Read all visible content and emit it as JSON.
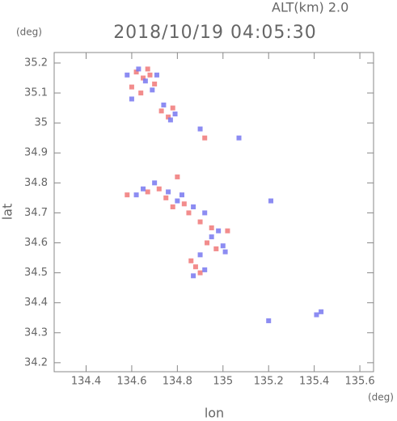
{
  "chart_data": {
    "type": "scatter",
    "title": "2018/10/19 04:05:30",
    "subtitle": "ALT(km) 2.0",
    "ylabel": "lat",
    "yunit": "(deg)",
    "xlabel": "lon",
    "xunit": "(deg)",
    "xlim": [
      134.26,
      135.66
    ],
    "ylim": [
      34.17,
      35.235
    ],
    "xticks": [
      134.4,
      134.6,
      134.8,
      135.0,
      135.2,
      135.4,
      135.6
    ],
    "yticks": [
      34.2,
      34.3,
      34.4,
      34.5,
      34.6,
      34.7,
      34.8,
      34.9,
      35.0,
      35.1,
      35.2
    ],
    "series": [
      {
        "color": "#f07878",
        "x": [
          134.62,
          134.65,
          134.67,
          134.6,
          134.7,
          134.64,
          134.68,
          134.73,
          134.76,
          134.78,
          134.92,
          134.58,
          134.67,
          134.8,
          134.75,
          134.83,
          134.85,
          134.78,
          134.9,
          134.95,
          135.02,
          134.93,
          134.97,
          134.88,
          134.9,
          134.86,
          134.72
        ],
        "y": [
          35.17,
          35.15,
          35.18,
          35.12,
          35.13,
          35.1,
          35.16,
          35.04,
          35.02,
          35.05,
          34.95,
          34.76,
          34.77,
          34.82,
          34.75,
          34.73,
          34.7,
          34.72,
          34.67,
          34.65,
          34.64,
          34.6,
          34.58,
          34.52,
          34.5,
          34.54,
          34.78
        ]
      },
      {
        "color": "#7878f0",
        "x": [
          134.58,
          134.63,
          134.66,
          134.71,
          134.6,
          134.69,
          134.74,
          134.77,
          134.79,
          135.07,
          134.65,
          134.62,
          134.76,
          134.8,
          134.82,
          134.87,
          134.92,
          134.98,
          135.0,
          134.95,
          134.9,
          134.87,
          134.92,
          135.01,
          135.2,
          135.21,
          135.41,
          135.43,
          134.9,
          134.7
        ],
        "y": [
          35.16,
          35.18,
          35.14,
          35.16,
          35.08,
          35.11,
          35.06,
          35.01,
          35.03,
          34.95,
          34.78,
          34.76,
          34.77,
          34.74,
          34.76,
          34.72,
          34.7,
          34.64,
          34.59,
          34.62,
          34.56,
          34.49,
          34.51,
          34.57,
          34.34,
          34.74,
          34.36,
          34.37,
          34.98,
          34.8
        ]
      }
    ]
  }
}
